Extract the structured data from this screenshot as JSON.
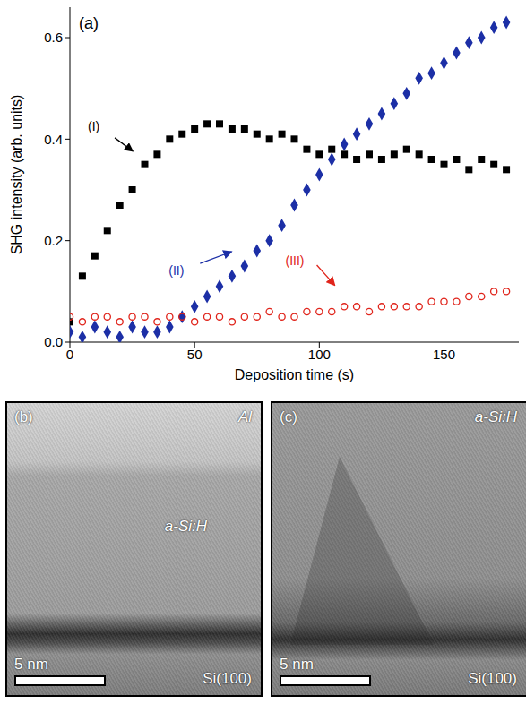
{
  "chart_data": {
    "type": "scatter",
    "title": "(a)",
    "x_label": "Deposition time (s)",
    "y_label": "SHG intensity (arb. units)",
    "x": [
      0,
      5,
      10,
      15,
      20,
      25,
      30,
      35,
      40,
      45,
      50,
      55,
      60,
      65,
      70,
      75,
      80,
      85,
      90,
      95,
      100,
      105,
      110,
      115,
      120,
      125,
      130,
      135,
      140,
      145,
      150,
      155,
      160,
      165,
      170,
      175
    ],
    "series": [
      {
        "name": "(I)",
        "color": "#000000",
        "marker": "square",
        "values": [
          0.04,
          0.13,
          0.17,
          0.22,
          0.27,
          0.3,
          0.35,
          0.37,
          0.4,
          0.41,
          0.42,
          0.43,
          0.43,
          0.42,
          0.42,
          0.41,
          0.4,
          0.41,
          0.4,
          0.38,
          0.37,
          0.38,
          0.37,
          0.36,
          0.37,
          0.36,
          0.37,
          0.38,
          0.37,
          0.36,
          0.35,
          0.36,
          0.34,
          0.36,
          0.35,
          0.34
        ]
      },
      {
        "name": "(II)",
        "color": "#1c2fa6",
        "marker": "diamond",
        "values": [
          0.02,
          0.01,
          0.03,
          0.02,
          0.01,
          0.03,
          0.02,
          0.02,
          0.03,
          0.05,
          0.07,
          0.09,
          0.11,
          0.13,
          0.15,
          0.18,
          0.2,
          0.23,
          0.27,
          0.3,
          0.33,
          0.36,
          0.39,
          0.41,
          0.43,
          0.45,
          0.47,
          0.49,
          0.52,
          0.53,
          0.55,
          0.57,
          0.59,
          0.6,
          0.62,
          0.63
        ]
      },
      {
        "name": "(III)",
        "color": "#e0241b",
        "marker": "open_circle",
        "values": [
          0.05,
          0.04,
          0.05,
          0.05,
          0.04,
          0.05,
          0.05,
          0.04,
          0.05,
          0.05,
          0.04,
          0.05,
          0.05,
          0.04,
          0.05,
          0.05,
          0.06,
          0.05,
          0.05,
          0.06,
          0.06,
          0.06,
          0.07,
          0.07,
          0.06,
          0.07,
          0.07,
          0.07,
          0.07,
          0.08,
          0.08,
          0.08,
          0.09,
          0.09,
          0.1,
          0.1
        ]
      }
    ],
    "xlim": [
      0,
      180
    ],
    "xticks": [
      0,
      50,
      100,
      150
    ],
    "ylim": [
      0,
      0.66
    ],
    "yticks": [
      {
        "value": 0,
        "label": "0.0"
      },
      0.2,
      0.4,
      0.6
    ],
    "grid": false
  },
  "images": [
    {
      "label": "(b)",
      "top_right": "Al",
      "middle": "a-Si:H",
      "scale": "5 nm",
      "substrate": "Si(100)"
    },
    {
      "label": "(c)",
      "top_right": "a-Si:H",
      "scale": "5 nm",
      "substrate": "Si(100)"
    }
  ]
}
